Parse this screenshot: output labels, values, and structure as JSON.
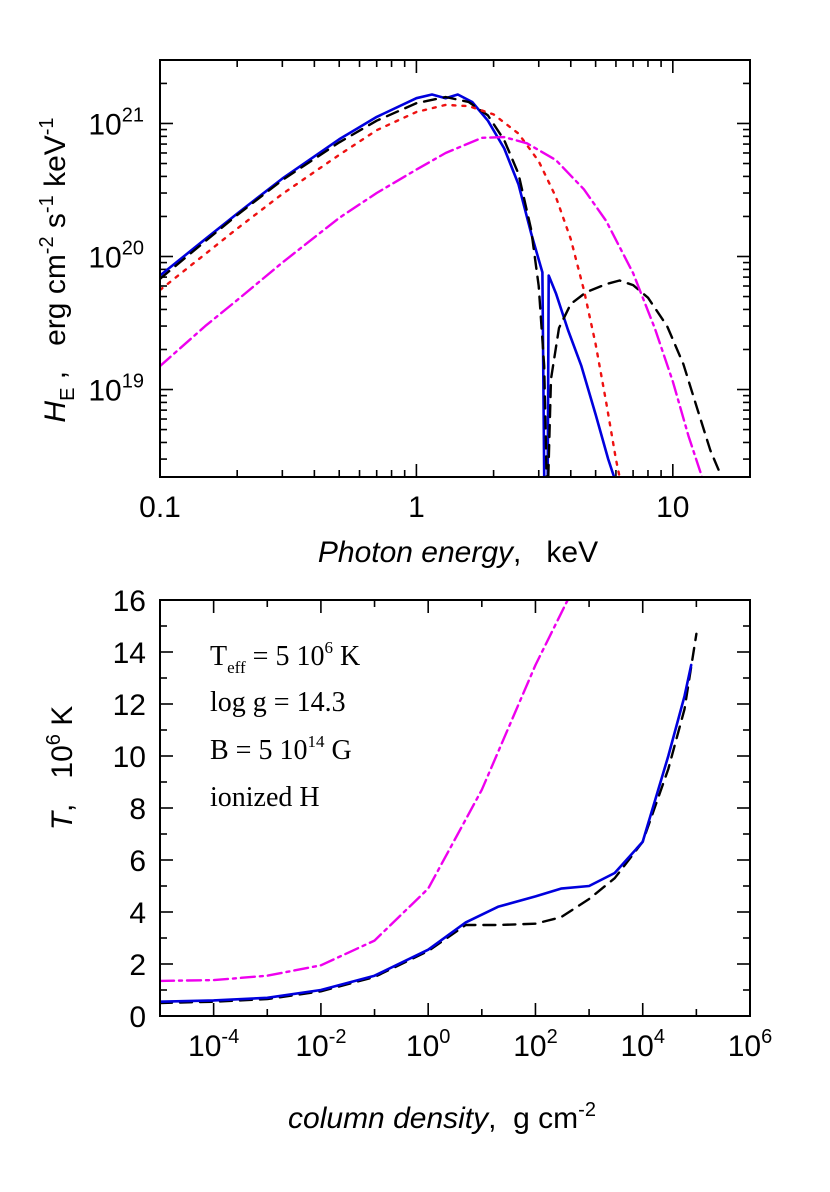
{
  "chart_data": [
    {
      "type": "line",
      "xscale": "log",
      "yscale": "log",
      "xlim": [
        0.1,
        20
      ],
      "ylim": [
        2.2e+18,
        3e+21
      ],
      "x_ticks": [
        {
          "value": 0.1,
          "label": "0.1"
        },
        {
          "value": 1,
          "label": "1"
        },
        {
          "value": 10,
          "label": "10"
        }
      ],
      "y_ticks": [
        {
          "value": 1e+19,
          "base": "10",
          "exp": "19"
        },
        {
          "value": 1e+20,
          "base": "10",
          "exp": "20"
        },
        {
          "value": 1e+21,
          "base": "10",
          "exp": "21"
        }
      ],
      "xlabel": {
        "italic": "Photon energy",
        "rest": ",   keV"
      },
      "ylabel": {
        "italic": "H",
        "sub": "E",
        "rest": " ,   erg cm",
        "sup1": "-2",
        "mid": " s",
        "sup2": "-1",
        "end": " keV",
        "sup3": "-1"
      },
      "series": [
        {
          "color": "#0000dd",
          "dash": "none",
          "points": [
            [
              0.1,
              7.2e+19
            ],
            [
              0.15,
              1.35e+20
            ],
            [
              0.2,
              2.1e+20
            ],
            [
              0.3,
              3.85e+20
            ],
            [
              0.5,
              7.6e+20
            ],
            [
              0.7,
              1.12e+21
            ],
            [
              1.0,
              1.55e+21
            ],
            [
              1.15,
              1.65e+21
            ],
            [
              1.3,
              1.55e+21
            ],
            [
              1.45,
              1.65e+21
            ],
            [
              1.65,
              1.45e+21
            ],
            [
              1.9,
              1.05e+21
            ],
            [
              2.2,
              6.5e+20
            ],
            [
              2.5,
              3.5e+20
            ],
            [
              2.8,
              1.5e+20
            ],
            [
              3.1,
              7.6e+19
            ],
            [
              3.15,
              2.2e+18
            ]
          ]
        },
        {
          "color": "#0000dd",
          "dash": "none",
          "points": [
            [
              3.25,
              2.2e+18
            ],
            [
              3.28,
              7.2e+19
            ],
            [
              3.5,
              5.3e+19
            ],
            [
              3.9,
              2.8e+19
            ],
            [
              4.4,
              1.5e+19
            ],
            [
              5.0,
              6.5e+18
            ],
            [
              5.6,
              3e+18
            ],
            [
              5.9,
              2.2e+18
            ]
          ]
        },
        {
          "color": "#000000",
          "dash": "12,8",
          "points": [
            [
              0.1,
              6.8e+19
            ],
            [
              0.15,
              1.3e+20
            ],
            [
              0.2,
              2.05e+20
            ],
            [
              0.3,
              3.75e+20
            ],
            [
              0.5,
              7.2e+20
            ],
            [
              0.7,
              1.05e+21
            ],
            [
              1.0,
              1.42e+21
            ],
            [
              1.3,
              1.58e+21
            ],
            [
              1.6,
              1.45e+21
            ],
            [
              1.9,
              1.15e+21
            ],
            [
              2.2,
              7.5e+20
            ],
            [
              2.5,
              4.2e+20
            ],
            [
              2.8,
              1.6e+20
            ],
            [
              3.0,
              6e+19
            ],
            [
              3.15,
              1.5e+19
            ],
            [
              3.22,
              2.2e+18
            ]
          ]
        },
        {
          "color": "#000000",
          "dash": "12,8",
          "points": [
            [
              3.27,
              2.2e+18
            ],
            [
              3.35,
              1.2e+19
            ],
            [
              3.6,
              2.9e+19
            ],
            [
              4.0,
              4.4e+19
            ],
            [
              4.6,
              5.4e+19
            ],
            [
              5.5,
              6.2e+19
            ],
            [
              6.2,
              6.6e+19
            ],
            [
              7.0,
              6.1e+19
            ],
            [
              8.0,
              4.9e+19
            ],
            [
              9.5,
              3e+19
            ],
            [
              11,
              1.55e+19
            ],
            [
              12.5,
              7e+18
            ],
            [
              14,
              3.5e+18
            ],
            [
              15.5,
              2.2e+18
            ]
          ]
        },
        {
          "color": "#ee1111",
          "dash": "3,7",
          "points": [
            [
              0.1,
              5.6e+19
            ],
            [
              0.2,
              1.62e+20
            ],
            [
              0.3,
              2.95e+20
            ],
            [
              0.5,
              5.8e+20
            ],
            [
              0.7,
              8.9e+20
            ],
            [
              1.0,
              1.22e+21
            ],
            [
              1.3,
              1.38e+21
            ],
            [
              1.6,
              1.35e+21
            ],
            [
              2.0,
              1.17e+21
            ],
            [
              2.5,
              8.4e+20
            ],
            [
              3.0,
              5.2e+20
            ],
            [
              3.5,
              2.8e+20
            ],
            [
              4.0,
              1.35e+20
            ],
            [
              4.5,
              5.6e+19
            ],
            [
              5.0,
              2.2e+19
            ],
            [
              5.5,
              8e+18
            ],
            [
              6.0,
              3e+18
            ],
            [
              6.2,
              2.2e+18
            ]
          ]
        },
        {
          "color": "#ee00ee",
          "dash": "14,5,3,5",
          "points": [
            [
              0.1,
              1.5e+19
            ],
            [
              0.15,
              3e+19
            ],
            [
              0.2,
              4.7e+19
            ],
            [
              0.3,
              9e+19
            ],
            [
              0.5,
              1.95e+20
            ],
            [
              0.7,
              3e+20
            ],
            [
              1.0,
              4.5e+20
            ],
            [
              1.3,
              6e+20
            ],
            [
              1.8,
              7.8e+20
            ],
            [
              2.2,
              7.9e+20
            ],
            [
              2.7,
              7.1e+20
            ],
            [
              3.5,
              5.3e+20
            ],
            [
              4.5,
              3.2e+20
            ],
            [
              5.5,
              1.85e+20
            ],
            [
              7.0,
              7.5e+19
            ],
            [
              8.5,
              2.9e+19
            ],
            [
              10,
              1.15e+19
            ],
            [
              11.5,
              4.5e+18
            ],
            [
              13,
              2.2e+18
            ]
          ]
        }
      ]
    },
    {
      "type": "line",
      "xscale": "log",
      "xlim": [
        1e-05,
        1000000.0
      ],
      "ylim": [
        0,
        16
      ],
      "x_ticks": [
        {
          "value": 0.0001,
          "base": "10",
          "exp": "-4"
        },
        {
          "value": 0.01,
          "base": "10",
          "exp": "-2"
        },
        {
          "value": 1,
          "base": "10",
          "exp": "0"
        },
        {
          "value": 100,
          "base": "10",
          "exp": "2"
        },
        {
          "value": 10000.0,
          "base": "10",
          "exp": "4"
        },
        {
          "value": 1000000.0,
          "base": "10",
          "exp": "6"
        }
      ],
      "y_ticks": [
        0,
        2,
        4,
        6,
        8,
        10,
        12,
        14,
        16
      ],
      "xlabel": {
        "italic": "column density",
        "rest": ",  g cm",
        "sup": "-2"
      },
      "ylabel": {
        "italic": "T",
        "rest": ",   10",
        "sup": "6",
        "end": " K"
      },
      "annotations": {
        "line1": {
          "pre": "T",
          "sub": "eff",
          "mid": " = 5 10",
          "sup": "6",
          "post": " K"
        },
        "line2": "log g = 14.3",
        "line3": {
          "pre": "B = 5 10",
          "sup": "14",
          "post": " G"
        },
        "line4": "ionized H"
      },
      "series": [
        {
          "color": "#ee00ee",
          "dash": "14,5,3,5",
          "points": [
            [
              1e-05,
              1.35
            ],
            [
              0.0001,
              1.38
            ],
            [
              0.001,
              1.55
            ],
            [
              0.01,
              1.95
            ],
            [
              0.1,
              2.9
            ],
            [
              1,
              4.9
            ],
            [
              10,
              8.7
            ],
            [
              100,
              13.5
            ],
            [
              400,
              16
            ]
          ]
        },
        {
          "color": "#000000",
          "dash": "12,8",
          "points": [
            [
              1e-05,
              0.5
            ],
            [
              0.0001,
              0.55
            ],
            [
              0.001,
              0.65
            ],
            [
              0.01,
              0.95
            ],
            [
              0.1,
              1.5
            ],
            [
              1,
              2.5
            ],
            [
              5,
              3.5
            ],
            [
              20,
              3.5
            ],
            [
              100,
              3.55
            ],
            [
              300,
              3.8
            ],
            [
              1000,
              4.5
            ],
            [
              3000,
              5.3
            ],
            [
              10000,
              6.7
            ],
            [
              30000,
              9.5
            ],
            [
              60000,
              11.8
            ],
            [
              100000,
              14.7
            ]
          ]
        },
        {
          "color": "#0000dd",
          "dash": "none",
          "points": [
            [
              1e-05,
              0.55
            ],
            [
              0.0001,
              0.6
            ],
            [
              0.001,
              0.7
            ],
            [
              0.01,
              1.0
            ],
            [
              0.1,
              1.55
            ],
            [
              1,
              2.55
            ],
            [
              5,
              3.6
            ],
            [
              20,
              4.2
            ],
            [
              100,
              4.6
            ],
            [
              300,
              4.9
            ],
            [
              1000,
              5.0
            ],
            [
              3000,
              5.5
            ],
            [
              10000,
              6.7
            ],
            [
              30000,
              10.0
            ],
            [
              60000,
              12.3
            ],
            [
              80000,
              13.5
            ]
          ]
        }
      ]
    }
  ]
}
